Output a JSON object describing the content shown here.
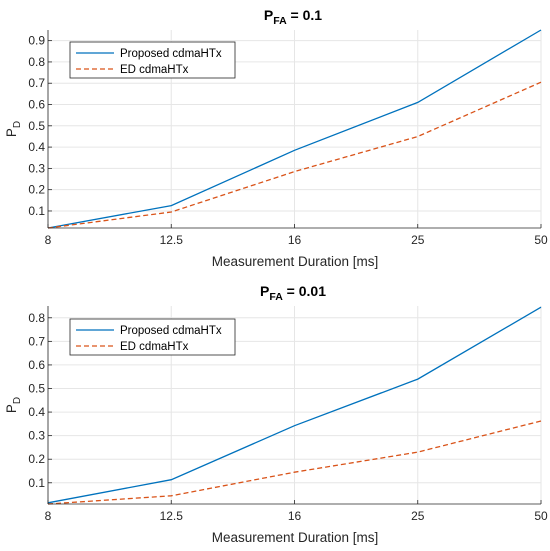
{
  "colors": {
    "proposed": "#0072BD",
    "ed": "#D95319",
    "grid": "#e6e6e6",
    "axis": "#262626"
  },
  "chart_data": [
    {
      "type": "line",
      "title_main": "P",
      "title_sub": "FA",
      "title_rest": " = 0.1",
      "xlabel": "Measurement Duration [ms]",
      "ylabel_main": "P",
      "ylabel_sub": "D",
      "categories": [
        "8",
        "12.5",
        "16",
        "25",
        "50"
      ],
      "ylim": [
        0.02,
        0.95
      ],
      "yticks": [
        0.1,
        0.2,
        0.3,
        0.4,
        0.5,
        0.6,
        0.7,
        0.8,
        0.9
      ],
      "ytick_labels": [
        "0.1",
        "0.2",
        "0.3",
        "0.4",
        "0.5",
        "0.6",
        "0.7",
        "0.8",
        "0.9"
      ],
      "grid": true,
      "legend_position": "top-left",
      "series": [
        {
          "name": "Proposed cdmaHTx",
          "values": [
            0.02,
            0.125,
            0.385,
            0.61,
            0.95
          ],
          "style": "solid"
        },
        {
          "name": "ED cdmaHTx",
          "values": [
            0.02,
            0.095,
            0.285,
            0.45,
            0.705
          ],
          "style": "dashed"
        }
      ]
    },
    {
      "type": "line",
      "title_main": "P",
      "title_sub": "FA",
      "title_rest": " = 0.01",
      "xlabel": "Measurement Duration [ms]",
      "ylabel_main": "P",
      "ylabel_sub": "D",
      "categories": [
        "8",
        "12.5",
        "16",
        "25",
        "50"
      ],
      "ylim": [
        0.01,
        0.85
      ],
      "yticks": [
        0.1,
        0.2,
        0.3,
        0.4,
        0.5,
        0.6,
        0.7,
        0.8
      ],
      "ytick_labels": [
        "0.1",
        "0.2",
        "0.3",
        "0.4",
        "0.5",
        "0.6",
        "0.7",
        "0.8"
      ],
      "grid": true,
      "legend_position": "top-left",
      "series": [
        {
          "name": "Proposed cdmaHTx",
          "values": [
            0.015,
            0.113,
            0.342,
            0.54,
            0.845
          ],
          "style": "solid"
        },
        {
          "name": "ED cdmaHTx",
          "values": [
            0.01,
            0.045,
            0.145,
            0.23,
            0.362
          ],
          "style": "dashed"
        }
      ]
    }
  ]
}
